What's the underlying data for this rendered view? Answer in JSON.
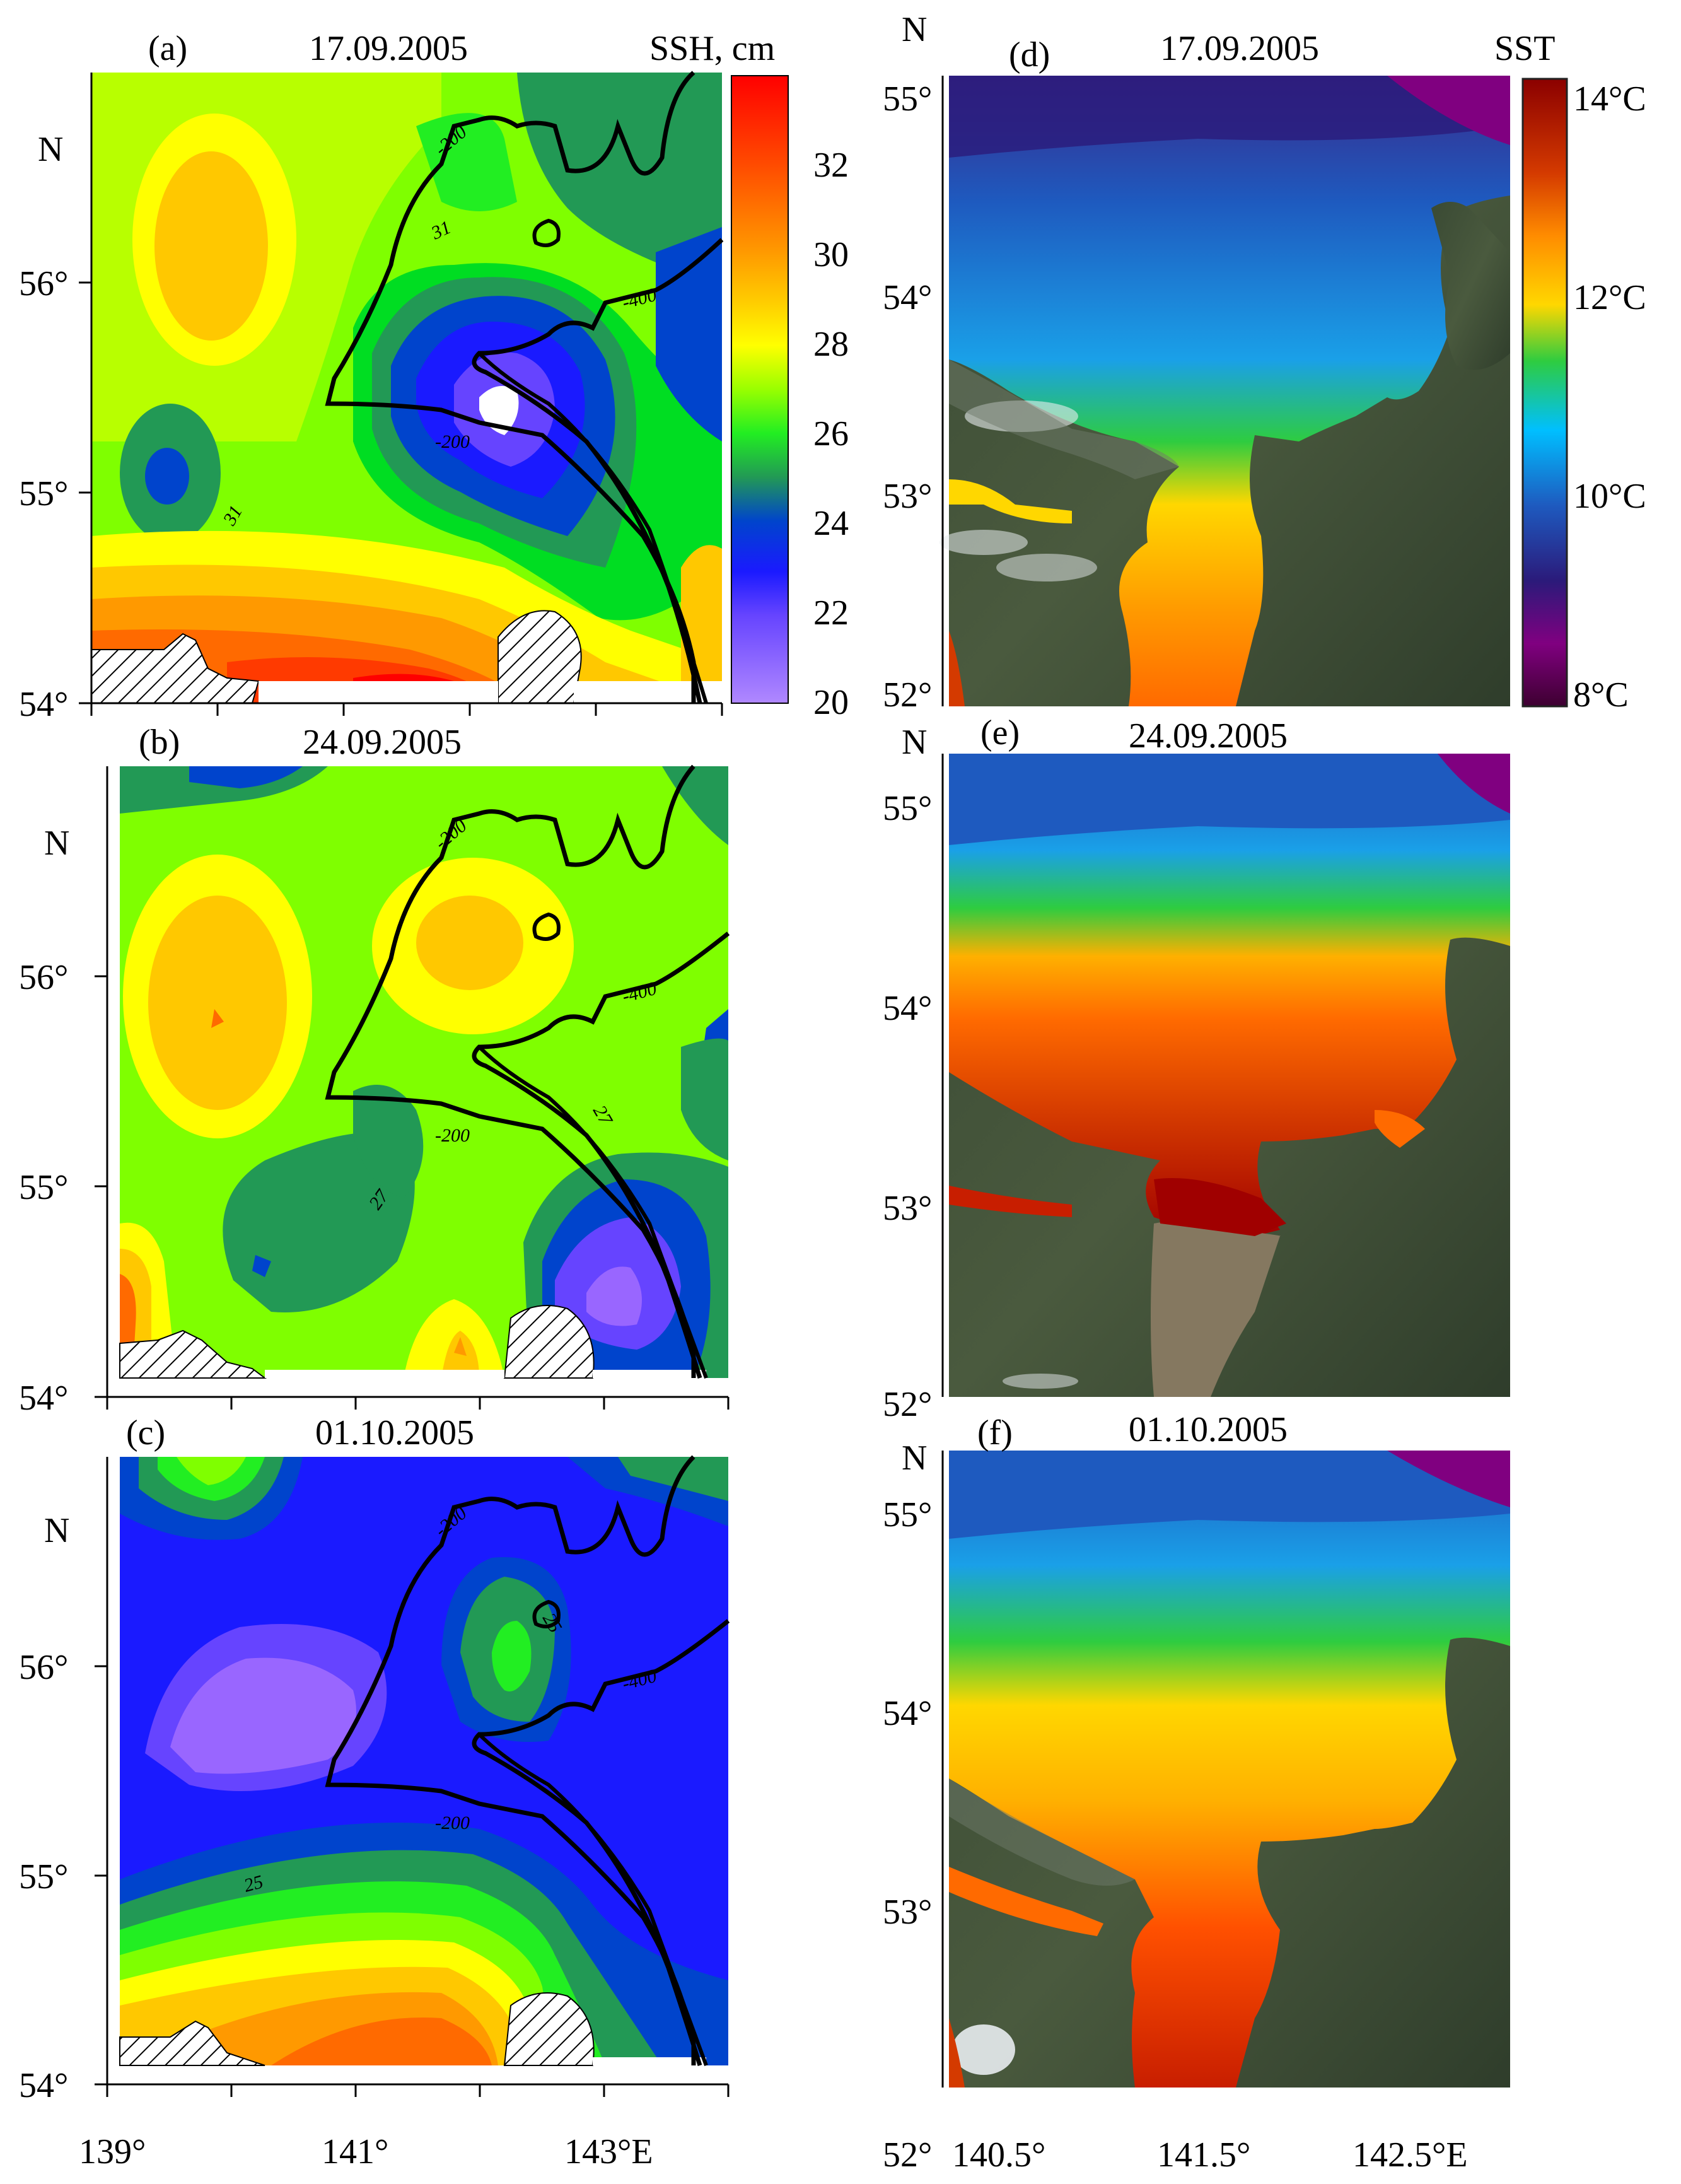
{
  "ssh_panels": [
    {
      "letter": "(a)",
      "date": "17.09.2005",
      "colorbar_title": "SSH, cm",
      "colorbar_ticks": [
        "32",
        "30",
        "28",
        "26",
        "24",
        "22",
        "20"
      ],
      "contour_labels": [
        "-200",
        "-400",
        "-200",
        "31",
        "31"
      ]
    },
    {
      "letter": "(b)",
      "date": "24.09.2005",
      "contour_labels": [
        "-200",
        "-400",
        "-200",
        "27",
        "27"
      ]
    },
    {
      "letter": "(c)",
      "date": "01.10.2005",
      "contour_labels": [
        "-200",
        "-400",
        "-200",
        "25",
        "25"
      ]
    }
  ],
  "ssh_lat_ticks": [
    "56°",
    "55°",
    "54°"
  ],
  "ssh_lon_ticks": [
    "139°",
    "141°",
    "143°E"
  ],
  "sst_panels": [
    {
      "letter": "(d)",
      "date": "17.09.2005",
      "colorbar_title": "SST",
      "colorbar_ticks": [
        "14°C",
        "12°C",
        "10°C",
        "8°C"
      ]
    },
    {
      "letter": "(e)",
      "date": "24.09.2005"
    },
    {
      "letter": "(f)",
      "date": "01.10.2005"
    }
  ],
  "sst_lat_ticks": [
    "55°",
    "54°",
    "53°",
    "52°"
  ],
  "sst_lon_ticks": [
    "140.5°",
    "141.5°",
    "142.5°E"
  ],
  "north_label": "N",
  "colors": {
    "ssh_scale": [
      "#ff0000",
      "#ff3a00",
      "#ff6a00",
      "#ff9900",
      "#ffc800",
      "#ffff00",
      "#c8ff00",
      "#7fff00",
      "#00dd22",
      "#229955",
      "#0044cc",
      "#1a1aff",
      "#6644ff",
      "#9966ff",
      "#b088ff"
    ],
    "sst_scale": [
      "#8b0000",
      "#d43a00",
      "#ff8c00",
      "#ffd700",
      "#2ecc40",
      "#00bfff",
      "#1e5abf",
      "#2b1a7a",
      "#800080",
      "#3d0030"
    ]
  }
}
